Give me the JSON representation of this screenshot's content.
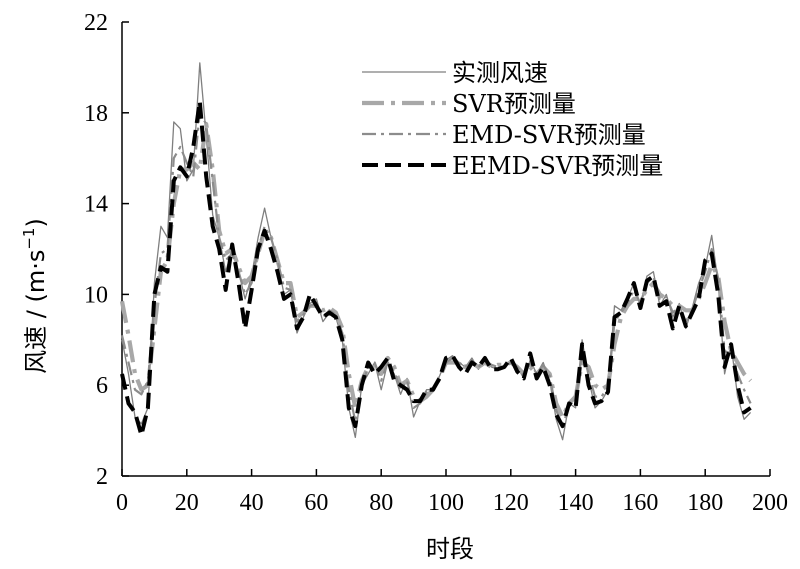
{
  "chart_data": {
    "type": "line",
    "xlabel": "时段",
    "ylabel_main": "风速 / (m·s",
    "ylabel_sup": "−1",
    "ylabel_end": ")",
    "xlim": [
      0,
      200
    ],
    "ylim": [
      2,
      22
    ],
    "xticks": [
      0,
      20,
      40,
      60,
      80,
      100,
      120,
      140,
      160,
      180,
      200
    ],
    "yticks": [
      2,
      6,
      10,
      14,
      18,
      22
    ],
    "grid": false,
    "legend_position": "top-right",
    "series": [
      {
        "name": "实测风速",
        "color": "#7f7f7f",
        "style": "solid",
        "x": [
          0,
          2,
          4,
          6,
          8,
          10,
          12,
          14,
          16,
          18,
          20,
          22,
          24,
          26,
          28,
          30,
          32,
          34,
          36,
          38,
          40,
          42,
          44,
          46,
          48,
          50,
          52,
          54,
          56,
          58,
          60,
          62,
          64,
          66,
          68,
          70,
          72,
          74,
          76,
          78,
          80,
          82,
          84,
          86,
          88,
          90,
          92,
          94,
          96,
          98,
          100,
          102,
          104,
          106,
          108,
          110,
          112,
          114,
          116,
          118,
          120,
          122,
          124,
          126,
          128,
          130,
          132,
          134,
          136,
          138,
          140,
          142,
          144,
          146,
          148,
          150,
          152,
          154,
          156,
          158,
          160,
          162,
          164,
          166,
          168,
          170,
          172,
          174,
          176,
          178,
          180,
          182,
          184,
          186,
          188,
          190,
          192,
          194
        ],
        "values": [
          8.0,
          6.5,
          4.6,
          4.3,
          5.0,
          10.5,
          13.0,
          12.5,
          17.6,
          17.3,
          15.0,
          15.5,
          20.2,
          17.0,
          13.5,
          12.5,
          11.0,
          12.0,
          11.0,
          9.8,
          10.8,
          12.5,
          13.8,
          12.5,
          11.5,
          10.0,
          10.2,
          8.3,
          9.0,
          9.6,
          9.8,
          8.8,
          9.2,
          9.0,
          8.0,
          5.0,
          3.7,
          6.0,
          6.5,
          7.0,
          5.8,
          7.0,
          6.5,
          5.6,
          6.3,
          4.6,
          5.3,
          5.8,
          5.8,
          6.4,
          7.1,
          7.3,
          7.0,
          6.8,
          7.2,
          6.7,
          7.2,
          6.8,
          6.7,
          6.8,
          7.1,
          6.8,
          6.3,
          7.1,
          6.5,
          7.0,
          6.2,
          4.5,
          3.6,
          5.2,
          5.0,
          8.0,
          6.3,
          5.0,
          5.3,
          5.8,
          9.5,
          9.3,
          9.8,
          10.5,
          9.5,
          10.8,
          11.0,
          9.5,
          10.0,
          9.0,
          9.6,
          8.5,
          9.4,
          10.5,
          11.2,
          12.6,
          10.5,
          6.5,
          7.8,
          5.5,
          4.5,
          4.8
        ]
      },
      {
        "name": "SVR预测量",
        "color": "#a8a8a8",
        "style": "dashdot-thick",
        "x": [
          0,
          2,
          4,
          6,
          8,
          10,
          12,
          14,
          16,
          18,
          20,
          22,
          24,
          26,
          28,
          30,
          32,
          34,
          36,
          38,
          40,
          42,
          44,
          46,
          48,
          50,
          52,
          54,
          56,
          58,
          60,
          62,
          64,
          66,
          68,
          70,
          72,
          74,
          76,
          78,
          80,
          82,
          84,
          86,
          88,
          90,
          92,
          94,
          96,
          98,
          100,
          102,
          104,
          106,
          108,
          110,
          112,
          114,
          116,
          118,
          120,
          122,
          124,
          126,
          128,
          130,
          132,
          134,
          136,
          138,
          140,
          142,
          144,
          146,
          148,
          150,
          152,
          154,
          156,
          158,
          160,
          162,
          164,
          166,
          168,
          170,
          172,
          174,
          176,
          178,
          180,
          182,
          184,
          186,
          188,
          190,
          192,
          194
        ],
        "values": [
          9.7,
          8.2,
          6.5,
          5.8,
          6.0,
          8.5,
          11.0,
          11.5,
          14.0,
          15.5,
          15.5,
          15.8,
          15.5,
          17.5,
          15.5,
          12.8,
          11.8,
          12.0,
          11.2,
          10.5,
          10.8,
          11.8,
          12.8,
          12.5,
          11.5,
          10.5,
          10.5,
          9.0,
          9.2,
          9.5,
          9.5,
          9.3,
          9.4,
          9.2,
          8.5,
          6.5,
          5.0,
          6.2,
          6.8,
          6.8,
          6.5,
          7.2,
          6.8,
          6.0,
          6.2,
          5.5,
          5.3,
          5.5,
          5.8,
          6.3,
          7.0,
          7.0,
          7.0,
          6.8,
          7.0,
          6.8,
          7.0,
          6.8,
          6.9,
          6.9,
          7.0,
          6.8,
          6.5,
          6.8,
          6.5,
          6.8,
          6.5,
          5.2,
          4.6,
          5.2,
          5.5,
          7.0,
          6.8,
          6.0,
          5.8,
          6.0,
          7.8,
          9.0,
          9.5,
          9.8,
          9.8,
          10.2,
          10.5,
          10.0,
          9.8,
          9.5,
          9.5,
          9.3,
          9.3,
          9.8,
          10.5,
          11.3,
          10.8,
          8.8,
          7.5,
          7.0,
          6.5,
          6.2
        ]
      },
      {
        "name": "EMD-SVR预测量",
        "color": "#8c8c8c",
        "style": "dashdot-thin",
        "x": [
          0,
          2,
          4,
          6,
          8,
          10,
          12,
          14,
          16,
          18,
          20,
          22,
          24,
          26,
          28,
          30,
          32,
          34,
          36,
          38,
          40,
          42,
          44,
          46,
          48,
          50,
          52,
          54,
          56,
          58,
          60,
          62,
          64,
          66,
          68,
          70,
          72,
          74,
          76,
          78,
          80,
          82,
          84,
          86,
          88,
          90,
          92,
          94,
          96,
          98,
          100,
          102,
          104,
          106,
          108,
          110,
          112,
          114,
          116,
          118,
          120,
          122,
          124,
          126,
          128,
          130,
          132,
          134,
          136,
          138,
          140,
          142,
          144,
          146,
          148,
          150,
          152,
          154,
          156,
          158,
          160,
          162,
          164,
          166,
          168,
          170,
          172,
          174,
          176,
          178,
          180,
          182,
          184,
          186,
          188,
          190,
          192,
          194
        ],
        "values": [
          8.2,
          7.0,
          5.8,
          5.6,
          6.2,
          9.5,
          11.8,
          12.0,
          16.0,
          16.5,
          15.8,
          15.2,
          18.0,
          17.5,
          15.0,
          12.5,
          11.5,
          11.8,
          11.0,
          10.0,
          10.5,
          12.0,
          13.0,
          12.5,
          11.5,
          10.3,
          10.2,
          8.8,
          9.1,
          9.5,
          9.6,
          9.0,
          9.3,
          9.1,
          8.3,
          5.8,
          4.4,
          6.0,
          6.8,
          7.0,
          6.2,
          7.0,
          6.6,
          5.8,
          6.2,
          5.0,
          5.2,
          5.7,
          5.9,
          6.4,
          7.0,
          7.2,
          7.0,
          6.8,
          7.1,
          6.8,
          7.1,
          6.9,
          6.8,
          6.8,
          7.0,
          6.8,
          6.4,
          7.0,
          6.5,
          6.9,
          6.4,
          4.9,
          4.2,
          5.1,
          5.2,
          7.5,
          6.5,
          5.5,
          5.5,
          5.9,
          8.8,
          9.2,
          9.6,
          10.2,
          9.6,
          10.5,
          10.8,
          9.8,
          9.9,
          9.2,
          9.5,
          8.8,
          9.3,
          10.2,
          11.0,
          12.0,
          10.7,
          7.5,
          7.4,
          6.5,
          5.8,
          5.2
        ]
      },
      {
        "name": "EEMD-SVR预测量",
        "color": "#000000",
        "style": "dashed-thick",
        "x": [
          0,
          2,
          4,
          6,
          8,
          10,
          12,
          14,
          16,
          18,
          20,
          22,
          24,
          26,
          28,
          30,
          32,
          34,
          36,
          38,
          40,
          42,
          44,
          46,
          48,
          50,
          52,
          54,
          56,
          58,
          60,
          62,
          64,
          66,
          68,
          70,
          72,
          74,
          76,
          78,
          80,
          82,
          84,
          86,
          88,
          90,
          92,
          94,
          96,
          98,
          100,
          102,
          104,
          106,
          108,
          110,
          112,
          114,
          116,
          118,
          120,
          122,
          124,
          126,
          128,
          130,
          132,
          134,
          136,
          138,
          140,
          142,
          144,
          146,
          148,
          150,
          152,
          154,
          156,
          158,
          160,
          162,
          164,
          166,
          168,
          170,
          172,
          174,
          176,
          178,
          180,
          182,
          184,
          186,
          188,
          190,
          192,
          194
        ],
        "values": [
          6.5,
          5.2,
          4.8,
          3.8,
          5.0,
          10.0,
          11.2,
          11.0,
          15.0,
          15.6,
          15.2,
          16.5,
          18.5,
          15.2,
          13.0,
          12.0,
          10.2,
          12.2,
          10.5,
          8.5,
          10.2,
          12.0,
          12.8,
          12.0,
          11.0,
          9.8,
          10.0,
          8.5,
          9.0,
          10.0,
          9.5,
          9.0,
          9.2,
          9.0,
          8.0,
          5.0,
          4.2,
          6.0,
          7.0,
          6.5,
          6.8,
          7.2,
          6.2,
          6.0,
          5.8,
          5.3,
          5.3,
          5.8,
          5.8,
          6.3,
          7.2,
          7.3,
          6.8,
          6.5,
          7.0,
          6.8,
          7.2,
          6.7,
          6.7,
          6.8,
          7.2,
          6.6,
          6.3,
          7.4,
          6.3,
          6.8,
          6.0,
          4.7,
          4.2,
          5.2,
          5.0,
          7.8,
          6.0,
          5.2,
          5.3,
          5.7,
          9.0,
          9.2,
          9.8,
          10.5,
          9.4,
          10.6,
          10.8,
          9.5,
          9.7,
          8.5,
          9.5,
          8.6,
          9.2,
          9.8,
          11.5,
          11.8,
          10.0,
          6.8,
          7.8,
          6.0,
          4.8,
          5.0
        ]
      }
    ]
  }
}
